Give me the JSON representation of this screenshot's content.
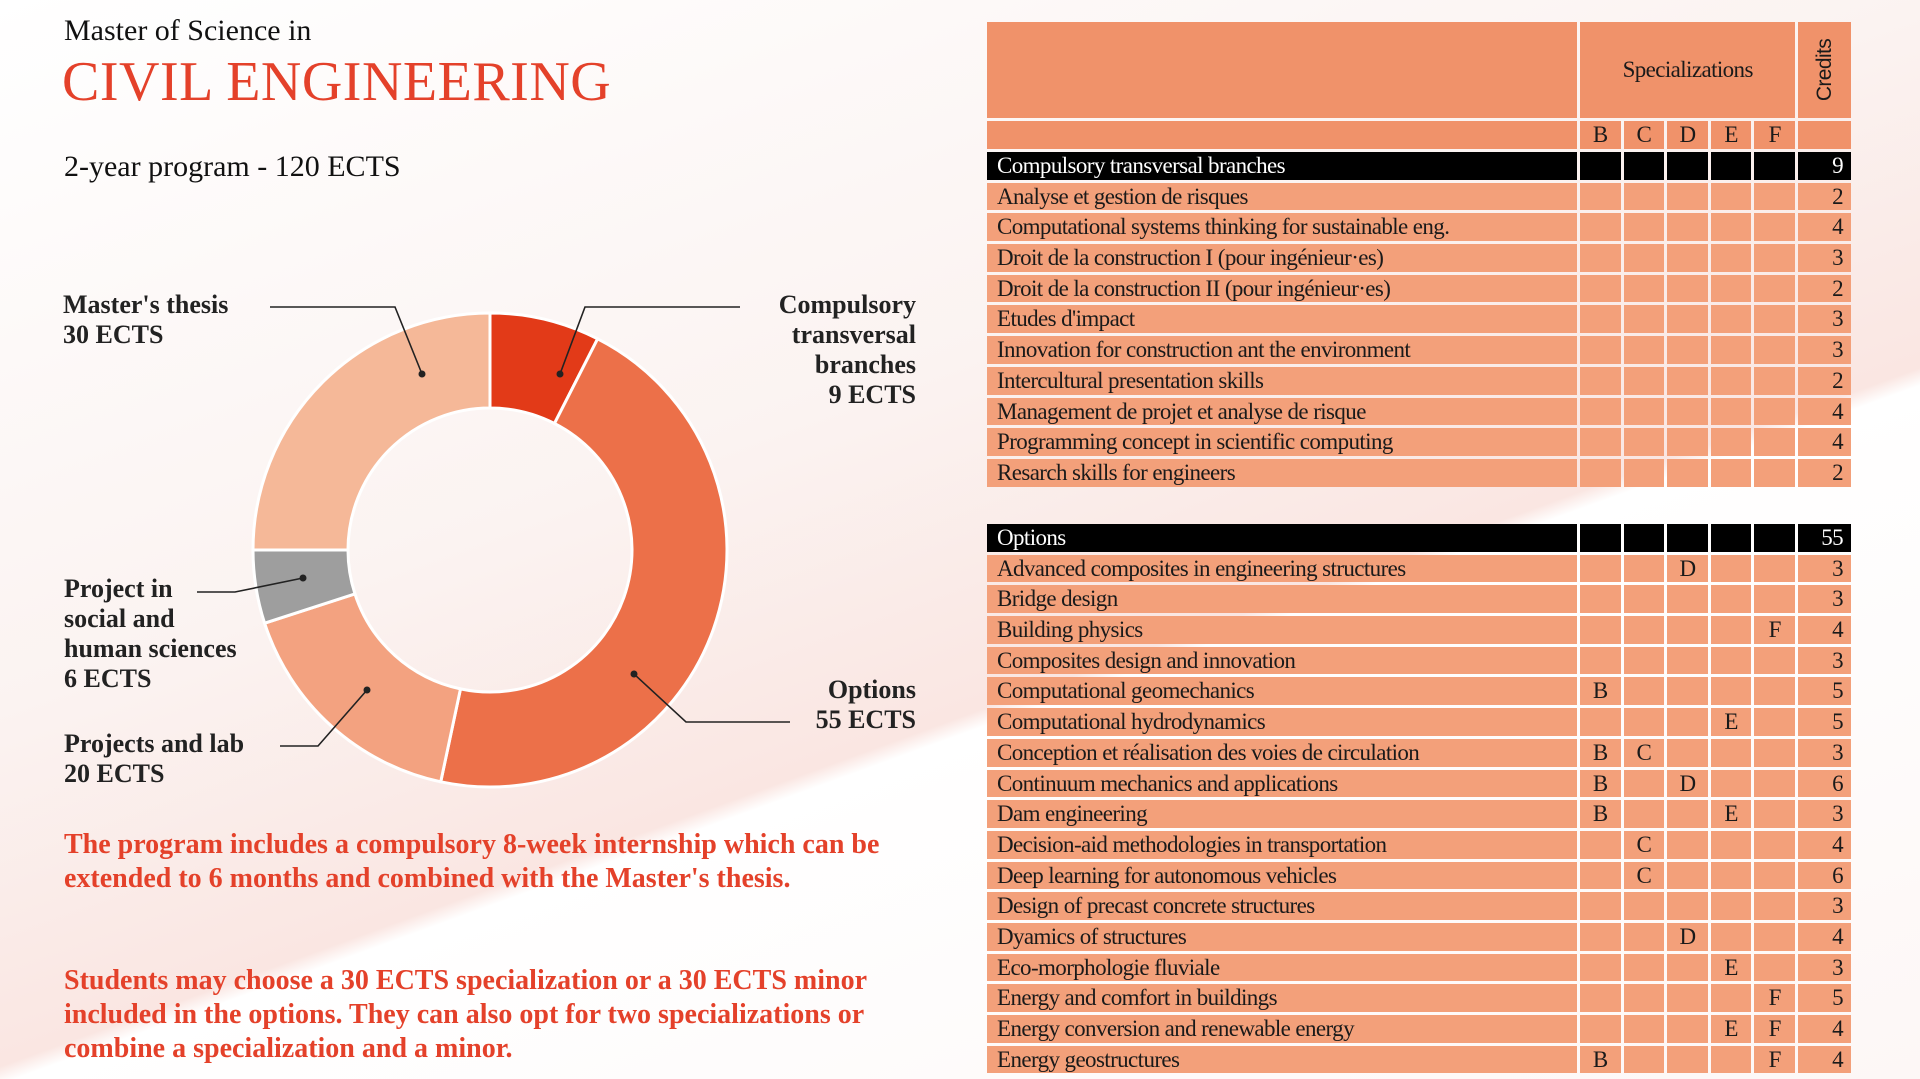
{
  "header": {
    "subtitle": "Master of Science in",
    "title": "CIVIL ENGINEERING",
    "program": "2-year program - 120 ECTS"
  },
  "chart_data": {
    "type": "pie",
    "donut": true,
    "total": 120,
    "unit": "ECTS",
    "slices": [
      {
        "name": "Compulsory transversal branches",
        "value": 9,
        "color": "#e23a18",
        "label": [
          "Compulsory",
          "transversal",
          "branches",
          "9 ECTS"
        ]
      },
      {
        "name": "Options",
        "value": 55,
        "color": "#ec7049",
        "label": [
          "Options",
          "55 ECTS"
        ]
      },
      {
        "name": "Projects and lab",
        "value": 20,
        "color": "#f3a280",
        "label": [
          "Projects and lab",
          "20 ECTS"
        ]
      },
      {
        "name": "Project in social and human sciences",
        "value": 6,
        "color": "#9e9e9e",
        "label": [
          "Project in",
          "social and",
          "human sciences",
          "6 ECTS"
        ]
      },
      {
        "name": "Master's thesis",
        "value": 30,
        "color": "#f5b898",
        "label": [
          "Master's thesis",
          "30 ECTS"
        ]
      }
    ]
  },
  "paragraphs": [
    "The program includes a compulsory 8-week internship which can be extended to 6 months and combined with the Master's thesis.",
    "Students may choose a 30 ECTS specialization or a 30 ECTS minor included in the options. They can also opt for two specializations or combine a specialization and a minor."
  ],
  "table": {
    "specializations_label": "Specializations",
    "credits_label": "Credits",
    "spec_letters": [
      "B",
      "C",
      "D",
      "E",
      "F"
    ],
    "sections": [
      {
        "title": "Compulsory transversal branches",
        "credits": "9",
        "rows": [
          {
            "name": "Analyse et gestion de risques",
            "specs": [
              "",
              "",
              "",
              "",
              ""
            ],
            "credits": "2"
          },
          {
            "name": "Computational systems thinking for sustainable eng.",
            "specs": [
              "",
              "",
              "",
              "",
              ""
            ],
            "credits": "4"
          },
          {
            "name": "Droit de la construction I (pour ingénieur·es)",
            "specs": [
              "",
              "",
              "",
              "",
              ""
            ],
            "credits": "3"
          },
          {
            "name": "Droit de la construction II (pour ingénieur·es)",
            "specs": [
              "",
              "",
              "",
              "",
              ""
            ],
            "credits": "2"
          },
          {
            "name": "Etudes d'impact",
            "specs": [
              "",
              "",
              "",
              "",
              ""
            ],
            "credits": "3"
          },
          {
            "name": "Innovation for construction ant the environment",
            "specs": [
              "",
              "",
              "",
              "",
              ""
            ],
            "credits": "3"
          },
          {
            "name": "Intercultural presentation skills",
            "specs": [
              "",
              "",
              "",
              "",
              ""
            ],
            "credits": "2"
          },
          {
            "name": "Management de projet et analyse de risque",
            "specs": [
              "",
              "",
              "",
              "",
              ""
            ],
            "credits": "4"
          },
          {
            "name": "Programming concept in scientific computing",
            "specs": [
              "",
              "",
              "",
              "",
              ""
            ],
            "credits": "4"
          },
          {
            "name": "Resarch skills for engineers",
            "specs": [
              "",
              "",
              "",
              "",
              ""
            ],
            "credits": "2"
          }
        ]
      },
      {
        "title": "Options",
        "credits": "55",
        "rows": [
          {
            "name": "Advanced composites in engineering structures",
            "specs": [
              "",
              "",
              "D",
              "",
              ""
            ],
            "credits": "3"
          },
          {
            "name": "Bridge design",
            "specs": [
              "",
              "",
              "",
              "",
              ""
            ],
            "credits": "3"
          },
          {
            "name": "Building physics",
            "specs": [
              "",
              "",
              "",
              "",
              "F"
            ],
            "credits": "4"
          },
          {
            "name": "Composites design and innovation",
            "specs": [
              "",
              "",
              "",
              "",
              ""
            ],
            "credits": "3"
          },
          {
            "name": "Computational geomechanics",
            "specs": [
              "B",
              "",
              "",
              "",
              ""
            ],
            "credits": "5"
          },
          {
            "name": "Computational hydrodynamics",
            "specs": [
              "",
              "",
              "",
              "E",
              ""
            ],
            "credits": "5"
          },
          {
            "name": "Conception et réalisation des voies de circulation",
            "specs": [
              "B",
              "C",
              "",
              "",
              ""
            ],
            "credits": "3"
          },
          {
            "name": "Continuum mechanics and applications",
            "specs": [
              "B",
              "",
              "D",
              "",
              ""
            ],
            "credits": "6"
          },
          {
            "name": "Dam engineering",
            "specs": [
              "B",
              "",
              "",
              "E",
              ""
            ],
            "credits": "3"
          },
          {
            "name": "Decision-aid methodologies in transportation",
            "specs": [
              "",
              "C",
              "",
              "",
              ""
            ],
            "credits": "4"
          },
          {
            "name": "Deep learning for autonomous vehicles",
            "specs": [
              "",
              "C",
              "",
              "",
              ""
            ],
            "credits": "6"
          },
          {
            "name": "Design of precast concrete structures",
            "specs": [
              "",
              "",
              "",
              "",
              ""
            ],
            "credits": "3"
          },
          {
            "name": "Dyamics of structures",
            "specs": [
              "",
              "",
              "D",
              "",
              ""
            ],
            "credits": "4"
          },
          {
            "name": "Eco-morphologie fluviale",
            "specs": [
              "",
              "",
              "",
              "E",
              ""
            ],
            "credits": "3"
          },
          {
            "name": "Energy and comfort in buildings",
            "specs": [
              "",
              "",
              "",
              "",
              "F"
            ],
            "credits": "5"
          },
          {
            "name": "Energy conversion and renewable energy",
            "specs": [
              "",
              "",
              "",
              "E",
              "F"
            ],
            "credits": "4"
          },
          {
            "name": "Energy geostructures",
            "specs": [
              "B",
              "",
              "",
              "",
              "F"
            ],
            "credits": "4"
          }
        ]
      }
    ]
  }
}
